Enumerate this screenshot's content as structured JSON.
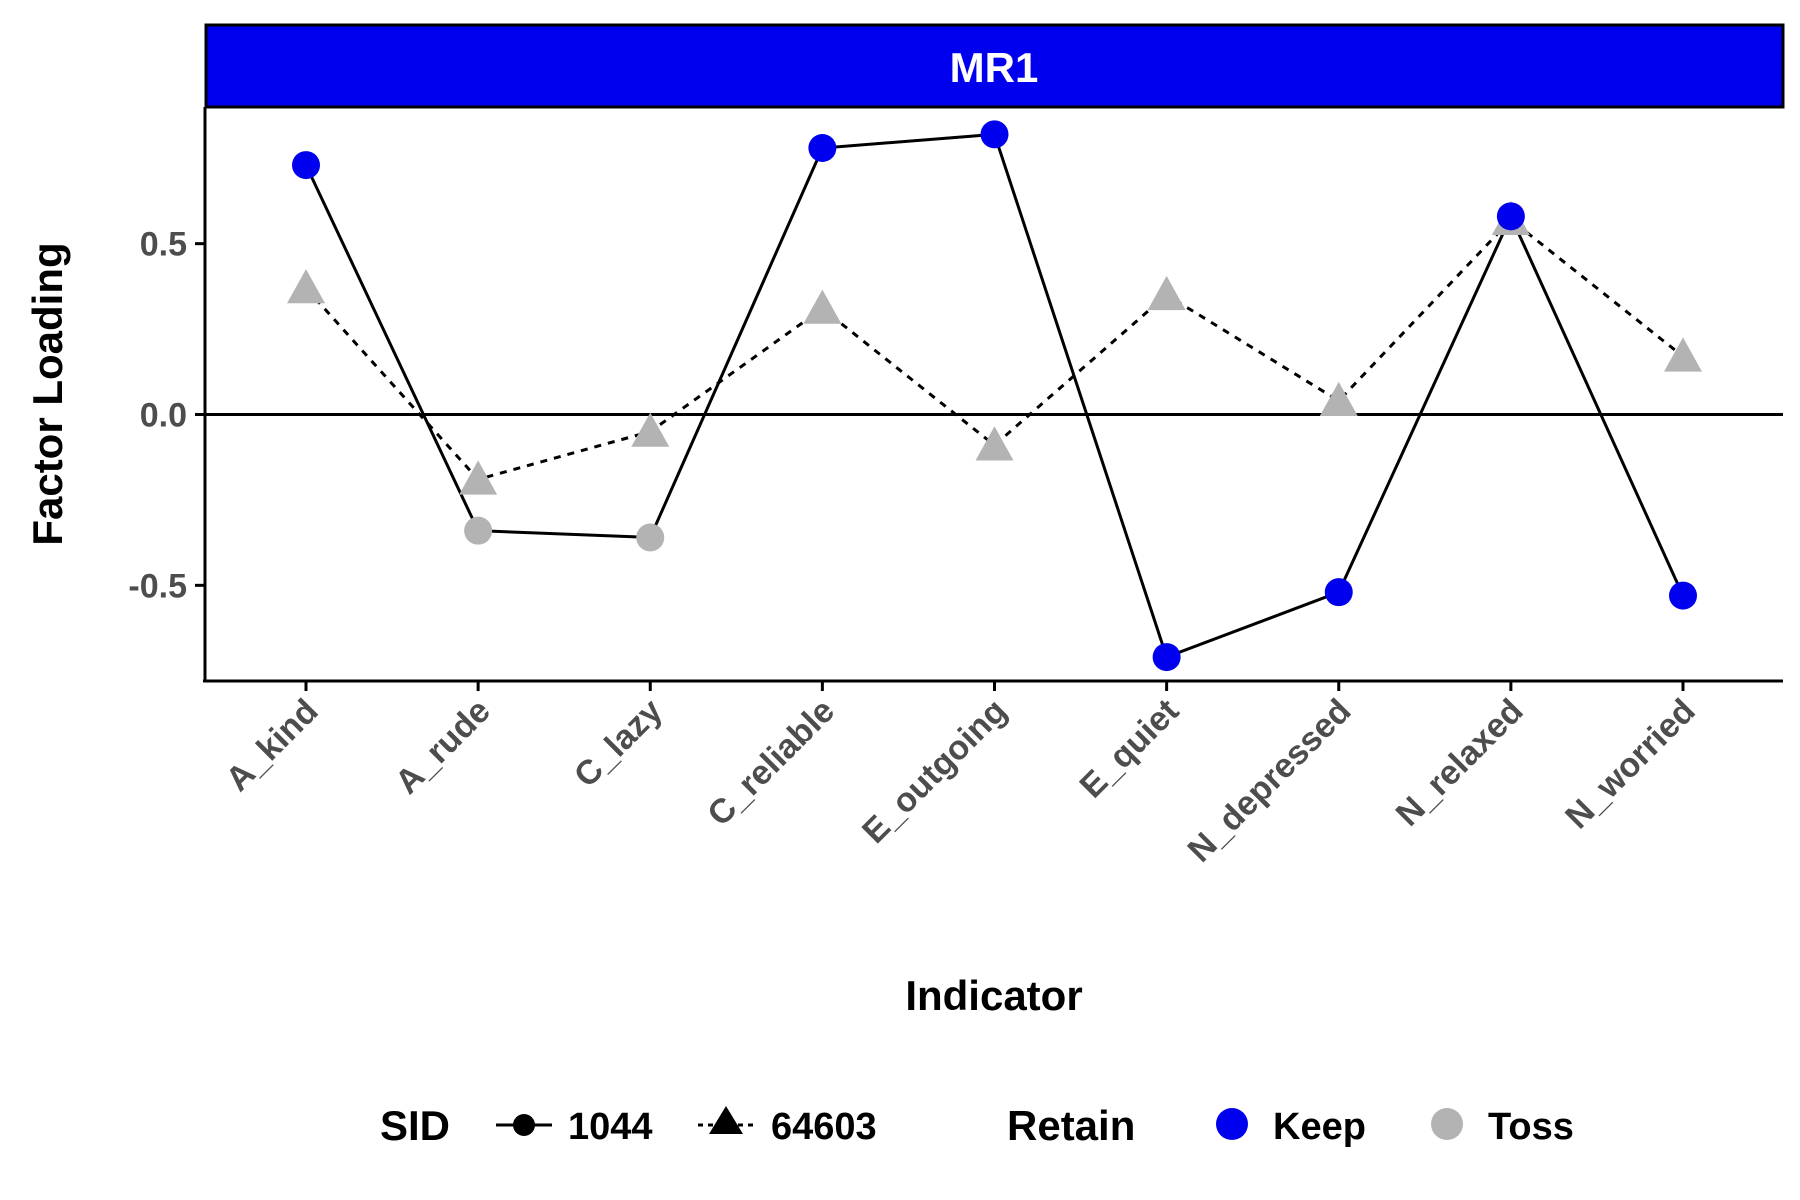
{
  "chart_data": {
    "type": "line",
    "facet_label": "MR1",
    "xlabel": "Indicator",
    "ylabel": "Factor Loading",
    "categories": [
      "A_kind",
      "A_rude",
      "C_lazy",
      "C_reliable",
      "E_outgoing",
      "E_quiet",
      "N_depressed",
      "N_relaxed",
      "N_worried"
    ],
    "ylim": [
      -0.78,
      0.9
    ],
    "yticks": [
      -0.5,
      0.0,
      0.5
    ],
    "ytick_labels": [
      "-0.5",
      "0.0",
      "0.5"
    ],
    "hline": 0,
    "grid": false,
    "series": [
      {
        "name": "1044",
        "shape": "circle",
        "linetype": "solid",
        "values": [
          0.73,
          -0.34,
          -0.36,
          0.78,
          0.82,
          -0.71,
          -0.52,
          0.58,
          -0.53
        ],
        "retain": [
          "Keep",
          "Toss",
          "Toss",
          "Keep",
          "Keep",
          "Keep",
          "Keep",
          "Keep",
          "Keep"
        ]
      },
      {
        "name": "64603",
        "shape": "triangle",
        "linetype": "dashed",
        "values": [
          0.37,
          -0.19,
          -0.05,
          0.31,
          -0.09,
          0.35,
          0.04,
          0.57,
          0.17
        ],
        "retain": [
          "Toss",
          "Toss",
          "Toss",
          "Toss",
          "Toss",
          "Toss",
          "Toss",
          "Toss",
          "Toss"
        ]
      }
    ],
    "legend": {
      "position": "bottom",
      "shape_title": "SID",
      "shape_entries": [
        "1044",
        "64603"
      ],
      "color_title": "Retain",
      "color_entries": [
        {
          "label": "Keep",
          "color": "#0000ee"
        },
        {
          "label": "Toss",
          "color": "#b3b3b3"
        }
      ]
    },
    "colors": {
      "strip_fill": "#0000ee",
      "keep": "#0000ee",
      "toss": "#b3b3b3",
      "line": "#000000"
    }
  }
}
